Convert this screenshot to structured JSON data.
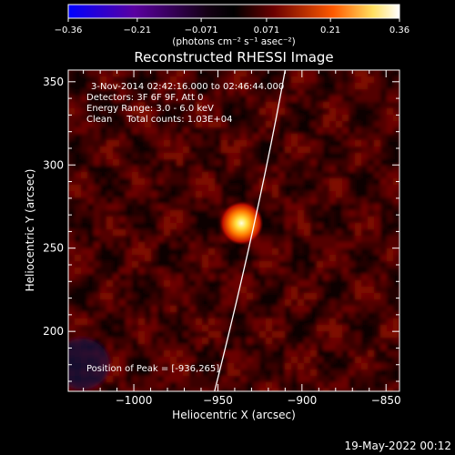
{
  "chart_data": {
    "type": "heatmap",
    "title": "Reconstructed RHESSI Image",
    "xlabel": "Heliocentric X (arcsec)",
    "ylabel": "Heliocentric Y (arcsec)",
    "xlim": [
      -1039,
      -842
    ],
    "ylim": [
      164,
      357
    ],
    "xticks": [
      -1000,
      -950,
      -900,
      -850
    ],
    "xtick_labels": [
      "−1000",
      "−950",
      "−900",
      "−850"
    ],
    "yticks": [
      200,
      250,
      300,
      350
    ],
    "ytick_labels": [
      "200",
      "250",
      "300",
      "350"
    ],
    "colorbar": {
      "min": -0.36,
      "max": 0.36,
      "ticks": [
        -0.36,
        -0.21,
        -0.071,
        0.071,
        0.21,
        0.36
      ],
      "tick_labels": [
        "−0.36",
        "−0.21",
        "−0.071",
        "0.071",
        "0.21",
        "0.36"
      ],
      "units_label": "(photons cm⁻² s⁻¹ asec⁻²)",
      "colors": [
        "#0000ff",
        "#4b0082",
        "#1a001a",
        "#000000",
        "#6a0000",
        "#ff6000",
        "#ffff80",
        "#ffffff"
      ]
    },
    "annotations": [
      "3-Nov-2014 02:42:16.000 to 02:46:44.000",
      "Detectors: 3F 6F 9F, Att 0",
      "Energy Range: 3.0 - 6.0 keV",
      "Clean     Total counts: 1.03E+04"
    ],
    "peak_label": "Position of Peak = [-936,265]",
    "peak": {
      "x": -936,
      "y": 265
    },
    "limb_points": [
      [
        -952,
        164
      ],
      [
        -938,
        220
      ],
      [
        -922,
        290
      ],
      [
        -910,
        357
      ]
    ]
  },
  "footer": {
    "date": "19-May-2022 00:12"
  }
}
